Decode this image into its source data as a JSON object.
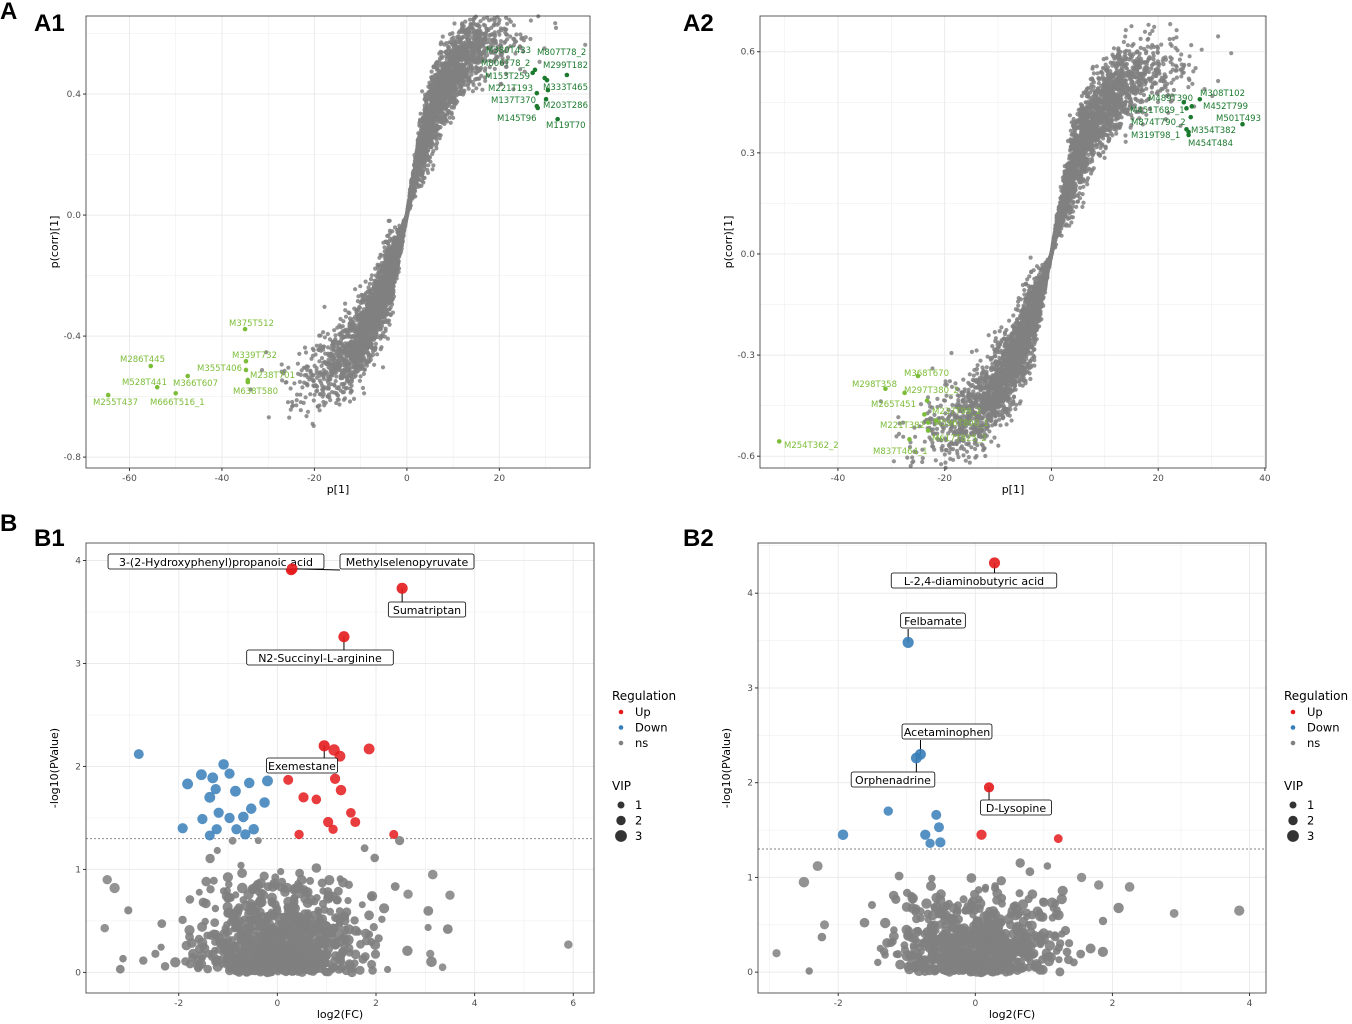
{
  "figure": {
    "panel_letters": [
      "A",
      "B"
    ],
    "colors": {
      "up": "#e41a1c",
      "down": "#377eb8",
      "ns": "#808080",
      "green_dark": "#1b7a2e",
      "green_light": "#7cbd38"
    }
  },
  "chart_data": [
    {
      "id": "A1",
      "type": "scatter",
      "panel_label": "A1",
      "xlabel": "p[1]",
      "ylabel": "p(corr)[1]",
      "xlim": [
        -69.4,
        39.6
      ],
      "ylim": [
        -0.836,
        0.658
      ],
      "xticks": [
        -60,
        -40,
        -20,
        0,
        20
      ],
      "xtick_labels": [
        "-60",
        "-40",
        "-20",
        "0",
        "20"
      ],
      "yticks": [
        -0.8,
        -0.4,
        0.0,
        0.4
      ],
      "ytick_labels": [
        "-0.8",
        "-0.4",
        "0.0",
        "0.4"
      ],
      "grid": true,
      "background": {
        "kind": "splot",
        "count": 5000,
        "color": "#808080"
      },
      "points": [
        {
          "label": "M380T433",
          "x": 27.7,
          "y": 0.48,
          "group": "dark"
        },
        {
          "label": "M807T78_2",
          "x": 30.3,
          "y": 0.446,
          "group": "dark"
        },
        {
          "label": "M806T78_2",
          "x": 29.8,
          "y": 0.453,
          "group": "dark"
        },
        {
          "label": "M299T182",
          "x": 34.6,
          "y": 0.463,
          "group": "dark"
        },
        {
          "label": "M153T259",
          "x": 27.2,
          "y": 0.47,
          "group": "dark"
        },
        {
          "label": "M333T465",
          "x": 30.5,
          "y": 0.413,
          "group": "dark"
        },
        {
          "label": "M221T193",
          "x": 28.1,
          "y": 0.403,
          "group": "dark"
        },
        {
          "label": "M137T370",
          "x": 30.1,
          "y": 0.383,
          "group": "dark"
        },
        {
          "label": "M203T286",
          "x": 28.3,
          "y": 0.354,
          "group": "dark"
        },
        {
          "label": "M145T96",
          "x": 28.1,
          "y": 0.36,
          "group": "dark"
        },
        {
          "label": "M119T70",
          "x": 32.6,
          "y": 0.317,
          "group": "dark"
        },
        {
          "label": "M375T512",
          "x": -35.0,
          "y": -0.377,
          "group": "light"
        },
        {
          "label": "M286T445",
          "x": -55.4,
          "y": -0.499,
          "group": "light"
        },
        {
          "label": "M339T732",
          "x": -34.8,
          "y": -0.483,
          "group": "light"
        },
        {
          "label": "M355T406",
          "x": -34.8,
          "y": -0.512,
          "group": "light"
        },
        {
          "label": "M238T701",
          "x": -34.4,
          "y": -0.545,
          "group": "light"
        },
        {
          "label": "M528T441",
          "x": -54.0,
          "y": -0.569,
          "group": "light"
        },
        {
          "label": "M366T607",
          "x": -47.4,
          "y": -0.532,
          "group": "light"
        },
        {
          "label": "M638T580",
          "x": -34.4,
          "y": -0.552,
          "group": "light"
        },
        {
          "label": "M255T437",
          "x": -64.6,
          "y": -0.595,
          "group": "light"
        },
        {
          "label": "M666T516_1",
          "x": -50.0,
          "y": -0.589,
          "group": "light"
        }
      ]
    },
    {
      "id": "A2",
      "type": "scatter",
      "panel_label": "A2",
      "xlabel": "p[1]",
      "ylabel": "p(corr)[1]",
      "xlim": [
        -54.6,
        40.2
      ],
      "ylim": [
        -0.635,
        0.706
      ],
      "xticks": [
        -40,
        -20,
        0,
        20,
        40
      ],
      "xtick_labels": [
        "-40",
        "-20",
        "0",
        "20",
        "40"
      ],
      "yticks": [
        -0.6,
        -0.3,
        0.0,
        0.3,
        0.6
      ],
      "ytick_labels": [
        "-0.6",
        "-0.3",
        "0.0",
        "0.3",
        "0.6"
      ],
      "grid": true,
      "background": {
        "kind": "splot",
        "count": 5000,
        "color": "#808080"
      },
      "points": [
        {
          "label": "M489T390",
          "x": 24.8,
          "y": 0.45,
          "group": "dark"
        },
        {
          "label": "M308T102",
          "x": 27.8,
          "y": 0.459,
          "group": "dark"
        },
        {
          "label": "M451T689_1",
          "x": 25.3,
          "y": 0.432,
          "group": "dark"
        },
        {
          "label": "M452T799",
          "x": 26.3,
          "y": 0.438,
          "group": "dark"
        },
        {
          "label": "M874T790_2",
          "x": 26.1,
          "y": 0.406,
          "group": "dark"
        },
        {
          "label": "M501T493",
          "x": 35.8,
          "y": 0.385,
          "group": "dark"
        },
        {
          "label": "M319T98_1",
          "x": 25.7,
          "y": 0.362,
          "group": "dark"
        },
        {
          "label": "M354T382",
          "x": 25.3,
          "y": 0.37,
          "group": "dark"
        },
        {
          "label": "M454T484",
          "x": 25.7,
          "y": 0.353,
          "group": "dark"
        },
        {
          "label": "M368T670",
          "x": -25.0,
          "y": -0.362,
          "group": "light"
        },
        {
          "label": "M298T358",
          "x": -31.1,
          "y": -0.4,
          "group": "light"
        },
        {
          "label": "M297T380_2",
          "x": -27.5,
          "y": -0.412,
          "group": "light"
        },
        {
          "label": "M265T451",
          "x": -23.3,
          "y": -0.435,
          "group": "light"
        },
        {
          "label": "M237T99_2",
          "x": -23.8,
          "y": -0.476,
          "group": "light"
        },
        {
          "label": "M221T382",
          "x": -23.1,
          "y": -0.5,
          "group": "light"
        },
        {
          "label": "M596T800_1",
          "x": -21.6,
          "y": -0.494,
          "group": "light"
        },
        {
          "label": "M617T825_2",
          "x": -23.1,
          "y": -0.524,
          "group": "light"
        },
        {
          "label": "M254T362_2",
          "x": -51.0,
          "y": -0.556,
          "group": "light"
        },
        {
          "label": "M837T464_1",
          "x": -26.6,
          "y": -0.55,
          "group": "light"
        }
      ]
    },
    {
      "id": "B1",
      "type": "scatter",
      "panel_label": "B1",
      "xlabel": "log2(FC)",
      "ylabel": "-log10(PValue)",
      "xlim": [
        -3.88,
        6.42
      ],
      "ylim": [
        -0.2,
        4.17
      ],
      "xticks": [
        -2,
        0,
        2,
        4,
        6
      ],
      "xtick_labels": [
        "-2",
        "0",
        "2",
        "4",
        "6"
      ],
      "yticks": [
        0,
        1,
        2,
        3,
        4
      ],
      "ytick_labels": [
        "0",
        "1",
        "2",
        "3",
        "4"
      ],
      "grid": true,
      "threshold_y": 1.3,
      "background": {
        "kind": "volcano",
        "count": 900,
        "color": "#808080",
        "xspread": 0.75
      },
      "legend": {
        "title": "Regulation",
        "entries": [
          "Up",
          "Down",
          "ns"
        ],
        "size_title": "VIP",
        "size_entries": [
          "1",
          "2",
          "3"
        ],
        "position": "right"
      },
      "annotated": [
        {
          "label": "3-(2-Hydroxyphenyl)propanoic acid",
          "x": 0.28,
          "y": 3.91,
          "reg": "Up",
          "vip": 2.5
        },
        {
          "label": "Methylselenopyruvate",
          "x": 0.3,
          "y": 3.92,
          "reg": "Up",
          "vip": 2.5
        },
        {
          "label": "Sumatriptan",
          "x": 2.53,
          "y": 3.73,
          "reg": "Up",
          "vip": 2.6
        },
        {
          "label": "N2-Succinyl-L-arginine",
          "x": 1.35,
          "y": 3.26,
          "reg": "Up",
          "vip": 2.6
        },
        {
          "label": "Exemestane",
          "x": 0.95,
          "y": 2.2,
          "reg": "Up",
          "vip": 2.6
        }
      ],
      "points": [
        {
          "x": 1.15,
          "y": 2.16,
          "reg": "Up",
          "vip": 2.7
        },
        {
          "x": 1.27,
          "y": 2.1,
          "reg": "Up",
          "vip": 2.5
        },
        {
          "x": 1.86,
          "y": 2.17,
          "reg": "Up",
          "vip": 2.5
        },
        {
          "x": 0.22,
          "y": 1.87,
          "reg": "Up",
          "vip": 2.2
        },
        {
          "x": 1.17,
          "y": 1.88,
          "reg": "Up",
          "vip": 2.3
        },
        {
          "x": 1.29,
          "y": 1.77,
          "reg": "Up",
          "vip": 2.4
        },
        {
          "x": 0.53,
          "y": 1.7,
          "reg": "Up",
          "vip": 2.3
        },
        {
          "x": 0.79,
          "y": 1.68,
          "reg": "Up",
          "vip": 2.1
        },
        {
          "x": 1.49,
          "y": 1.55,
          "reg": "Up",
          "vip": 2.1
        },
        {
          "x": 1.03,
          "y": 1.46,
          "reg": "Up",
          "vip": 2.3
        },
        {
          "x": 1.58,
          "y": 1.46,
          "reg": "Up",
          "vip": 2.2
        },
        {
          "x": 1.13,
          "y": 1.39,
          "reg": "Up",
          "vip": 2.0
        },
        {
          "x": 0.44,
          "y": 1.34,
          "reg": "Up",
          "vip": 2.0
        },
        {
          "x": 2.36,
          "y": 1.34,
          "reg": "Up",
          "vip": 1.9
        },
        {
          "x": -2.81,
          "y": 2.12,
          "reg": "Down",
          "vip": 2.2
        },
        {
          "x": -1.09,
          "y": 2.02,
          "reg": "Down",
          "vip": 2.4
        },
        {
          "x": -1.31,
          "y": 1.89,
          "reg": "Down",
          "vip": 2.5
        },
        {
          "x": -1.54,
          "y": 1.92,
          "reg": "Down",
          "vip": 2.5
        },
        {
          "x": -1.82,
          "y": 1.83,
          "reg": "Down",
          "vip": 2.5
        },
        {
          "x": -0.97,
          "y": 1.93,
          "reg": "Down",
          "vip": 2.3
        },
        {
          "x": -1.25,
          "y": 1.78,
          "reg": "Down",
          "vip": 2.3
        },
        {
          "x": -0.2,
          "y": 1.86,
          "reg": "Down",
          "vip": 2.5
        },
        {
          "x": -0.57,
          "y": 1.84,
          "reg": "Down",
          "vip": 2.4
        },
        {
          "x": -0.85,
          "y": 1.76,
          "reg": "Down",
          "vip": 2.5
        },
        {
          "x": -1.37,
          "y": 1.7,
          "reg": "Down",
          "vip": 2.5
        },
        {
          "x": -0.26,
          "y": 1.65,
          "reg": "Down",
          "vip": 2.4
        },
        {
          "x": -0.53,
          "y": 1.59,
          "reg": "Down",
          "vip": 2.4
        },
        {
          "x": -0.69,
          "y": 1.51,
          "reg": "Down",
          "vip": 2.4
        },
        {
          "x": -1.19,
          "y": 1.55,
          "reg": "Down",
          "vip": 2.3
        },
        {
          "x": -1.52,
          "y": 1.49,
          "reg": "Down",
          "vip": 2.3
        },
        {
          "x": -0.97,
          "y": 1.5,
          "reg": "Down",
          "vip": 2.3
        },
        {
          "x": -1.92,
          "y": 1.4,
          "reg": "Down",
          "vip": 2.3
        },
        {
          "x": -1.23,
          "y": 1.39,
          "reg": "Down",
          "vip": 2.3
        },
        {
          "x": -0.83,
          "y": 1.39,
          "reg": "Down",
          "vip": 2.3
        },
        {
          "x": -0.48,
          "y": 1.39,
          "reg": "Down",
          "vip": 2.4
        },
        {
          "x": -1.37,
          "y": 1.33,
          "reg": "Down",
          "vip": 2.2
        },
        {
          "x": -0.65,
          "y": 1.34,
          "reg": "Down",
          "vip": 2.3
        },
        {
          "x": -3.45,
          "y": 0.9,
          "reg": "ns",
          "vip": 2.0
        },
        {
          "x": -3.3,
          "y": 0.82,
          "reg": "ns",
          "vip": 2.3
        },
        {
          "x": -3.5,
          "y": 0.43,
          "reg": "ns",
          "vip": 1.7
        },
        {
          "x": 5.9,
          "y": 0.27,
          "reg": "ns",
          "vip": 1.7
        },
        {
          "x": 3.15,
          "y": 0.95,
          "reg": "ns",
          "vip": 2.1
        },
        {
          "x": 3.5,
          "y": 0.75,
          "reg": "ns",
          "vip": 2.0
        },
        {
          "x": 2.65,
          "y": 0.76,
          "reg": "ns",
          "vip": 2.0
        },
        {
          "x": 3.1,
          "y": 0.18,
          "reg": "ns",
          "vip": 1.6
        },
        {
          "x": 3.35,
          "y": 0.05,
          "reg": "ns",
          "vip": 1.4
        }
      ]
    },
    {
      "id": "B2",
      "type": "scatter",
      "panel_label": "B2",
      "xlabel": "log2(FC)",
      "ylabel": "-log10(PValue)",
      "xlim": [
        -3.17,
        4.24
      ],
      "ylim": [
        -0.22,
        4.53
      ],
      "xticks": [
        -2,
        0,
        2,
        4
      ],
      "xtick_labels": [
        "-2",
        "0",
        "2",
        "4"
      ],
      "yticks": [
        0,
        1,
        2,
        3,
        4
      ],
      "ytick_labels": [
        "0",
        "1",
        "2",
        "3",
        "4"
      ],
      "grid": true,
      "threshold_y": 1.3,
      "background": {
        "kind": "volcano",
        "count": 650,
        "color": "#808080",
        "xspread": 0.55
      },
      "legend": {
        "title": "Regulation",
        "entries": [
          "Up",
          "Down",
          "ns"
        ],
        "size_title": "VIP",
        "size_entries": [
          "1",
          "2",
          "3"
        ],
        "position": "right"
      },
      "annotated": [
        {
          "label": "L-2,4-diaminobutyric acid",
          "x": 0.28,
          "y": 4.32,
          "reg": "Up",
          "vip": 2.6
        },
        {
          "label": "Felbamate",
          "x": -0.98,
          "y": 3.48,
          "reg": "Down",
          "vip": 2.6
        },
        {
          "label": "Acetaminophen",
          "x": -0.8,
          "y": 2.3,
          "reg": "Down",
          "vip": 2.5
        },
        {
          "label": "Orphenadrine",
          "x": -0.86,
          "y": 2.26,
          "reg": "Down",
          "vip": 2.5
        },
        {
          "label": "D-Lysopine",
          "x": 0.2,
          "y": 1.95,
          "reg": "Up",
          "vip": 2.3
        }
      ],
      "points": [
        {
          "x": 0.09,
          "y": 1.45,
          "reg": "Up",
          "vip": 2.3
        },
        {
          "x": 1.21,
          "y": 1.41,
          "reg": "Up",
          "vip": 1.8
        },
        {
          "x": -1.27,
          "y": 1.7,
          "reg": "Down",
          "vip": 2.0
        },
        {
          "x": -0.57,
          "y": 1.66,
          "reg": "Down",
          "vip": 2.2
        },
        {
          "x": -0.53,
          "y": 1.53,
          "reg": "Down",
          "vip": 2.2
        },
        {
          "x": -1.93,
          "y": 1.45,
          "reg": "Down",
          "vip": 2.4
        },
        {
          "x": -0.73,
          "y": 1.45,
          "reg": "Down",
          "vip": 2.3
        },
        {
          "x": -0.66,
          "y": 1.36,
          "reg": "Down",
          "vip": 2.0
        },
        {
          "x": -0.51,
          "y": 1.37,
          "reg": "Down",
          "vip": 2.3
        },
        {
          "x": -2.5,
          "y": 0.95,
          "reg": "ns",
          "vip": 2.4
        },
        {
          "x": -2.3,
          "y": 1.12,
          "reg": "ns",
          "vip": 2.2
        },
        {
          "x": -2.9,
          "y": 0.2,
          "reg": "ns",
          "vip": 1.6
        },
        {
          "x": -2.2,
          "y": 0.5,
          "reg": "ns",
          "vip": 1.9
        },
        {
          "x": 3.85,
          "y": 0.65,
          "reg": "ns",
          "vip": 2.3
        },
        {
          "x": 2.9,
          "y": 0.62,
          "reg": "ns",
          "vip": 1.8
        },
        {
          "x": 2.25,
          "y": 0.9,
          "reg": "ns",
          "vip": 2.1
        },
        {
          "x": 1.8,
          "y": 0.92,
          "reg": "ns",
          "vip": 2.0
        },
        {
          "x": 1.55,
          "y": 1.0,
          "reg": "ns",
          "vip": 2.0
        }
      ]
    }
  ]
}
